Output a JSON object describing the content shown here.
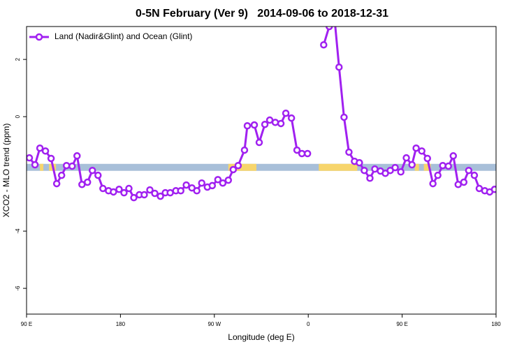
{
  "chart_data": {
    "type": "line",
    "title": "0-5N February (Ver 9)   2014-09-06 to 2018-12-31",
    "xlabel": "Longitude (deg E)",
    "ylabel": "XCO2 - MLO trend (ppm)",
    "xlim": [
      90,
      540
    ],
    "ylim": [
      -6.9,
      3.15
    ],
    "xticks": [
      {
        "value": 90,
        "label": "90 E"
      },
      {
        "value": 180,
        "label": "180"
      },
      {
        "value": 270,
        "label": "90 W"
      },
      {
        "value": 360,
        "label": "0"
      },
      {
        "value": 450,
        "label": "90 E"
      },
      {
        "value": 540,
        "label": "180"
      }
    ],
    "yticks": [
      2,
      0,
      -4,
      -6
    ],
    "legend": "top-left",
    "x": [
      92.7,
      98.1,
      102.8,
      108.1,
      113.5,
      118.9,
      123.6,
      128.3,
      133.7,
      138.4,
      143.1,
      148.4,
      153.1,
      158.5,
      163.2,
      168.6,
      173.3,
      178.7,
      183.4,
      188.1,
      192.8,
      198.1,
      202.8,
      208.2,
      212.9,
      218.3,
      223.0,
      227.7,
      233.1,
      237.8,
      243.1,
      248.5,
      253.2,
      257.9,
      263.3,
      268.0,
      273.4,
      278.1,
      283.4,
      288.1,
      292.8,
      298.9,
      301.6,
      308.3,
      313.0,
      318.4,
      323.1,
      328.4,
      333.8,
      338.5,
      343.9,
      349.2,
      353.9,
      359.3,
      365.0,
      374.8,
      380.1,
      384.8,
      389.5,
      394.3,
      399.0,
      404.3,
      409.0,
      413.7,
      419.1,
      423.8,
      429.2,
      433.9,
      438.6,
      443.3,
      448.7,
      454.0,
      459.4,
      463.4,
      468.8,
      474.2,
      479.5,
      484.2,
      488.9,
      494.3,
      499.0,
      503.7,
      509.1,
      513.8,
      519.2,
      523.9,
      529.2,
      533.9,
      538.6
    ],
    "series": [
      {
        "name": "Land (Nadir&Glint) and Ocean (Glint)",
        "color": "#a020f0",
        "values": [
          -1.44,
          -1.68,
          -1.1,
          -1.2,
          -1.46,
          -2.34,
          -2.05,
          -1.71,
          -1.73,
          -1.37,
          -2.37,
          -2.29,
          -1.88,
          -2.05,
          -2.51,
          -2.59,
          -2.63,
          -2.54,
          -2.66,
          -2.51,
          -2.83,
          -2.73,
          -2.73,
          -2.56,
          -2.68,
          -2.78,
          -2.66,
          -2.66,
          -2.59,
          -2.59,
          -2.39,
          -2.49,
          -2.59,
          -2.32,
          -2.46,
          -2.41,
          -2.2,
          -2.32,
          -2.22,
          -1.85,
          -1.71,
          -1.17,
          -0.32,
          -0.29,
          -0.9,
          -0.27,
          -0.12,
          -0.2,
          -0.24,
          0.12,
          -0.05,
          -1.17,
          -1.29,
          -1.29,
          null,
          2.51,
          3.15,
          3.6,
          1.73,
          -0.02,
          -1.24,
          -1.56,
          -1.61,
          -1.88,
          -2.15,
          -1.83,
          -1.9,
          -1.98,
          -1.88,
          -1.78,
          -1.93,
          -1.44,
          -1.68,
          -1.1,
          -1.2,
          -1.46,
          -2.34,
          -2.05,
          -1.71,
          -1.73,
          -1.37,
          -2.37,
          -2.29,
          -1.88,
          -2.05,
          -2.51,
          -2.59,
          -2.63,
          -2.54
        ]
      }
    ],
    "band": {
      "y": -1.77,
      "color": "#a8bfd9",
      "segments": [
        {
          "color": "#f7d56c",
          "x": [
            102.8,
            106.1
          ]
        },
        {
          "color": "#f7d56c",
          "x": [
            111.5,
            118.2
          ]
        },
        {
          "color": "#f7d56c",
          "x": [
            283.4,
            310.3
          ]
        },
        {
          "color": "#f7d56c",
          "x": [
            370.1,
            407.0
          ]
        },
        {
          "color": "#f7d56c",
          "x": [
            462.1,
            466.1
          ]
        },
        {
          "color": "#f7d56c",
          "x": [
            470.8,
            477.5
          ]
        }
      ]
    }
  }
}
